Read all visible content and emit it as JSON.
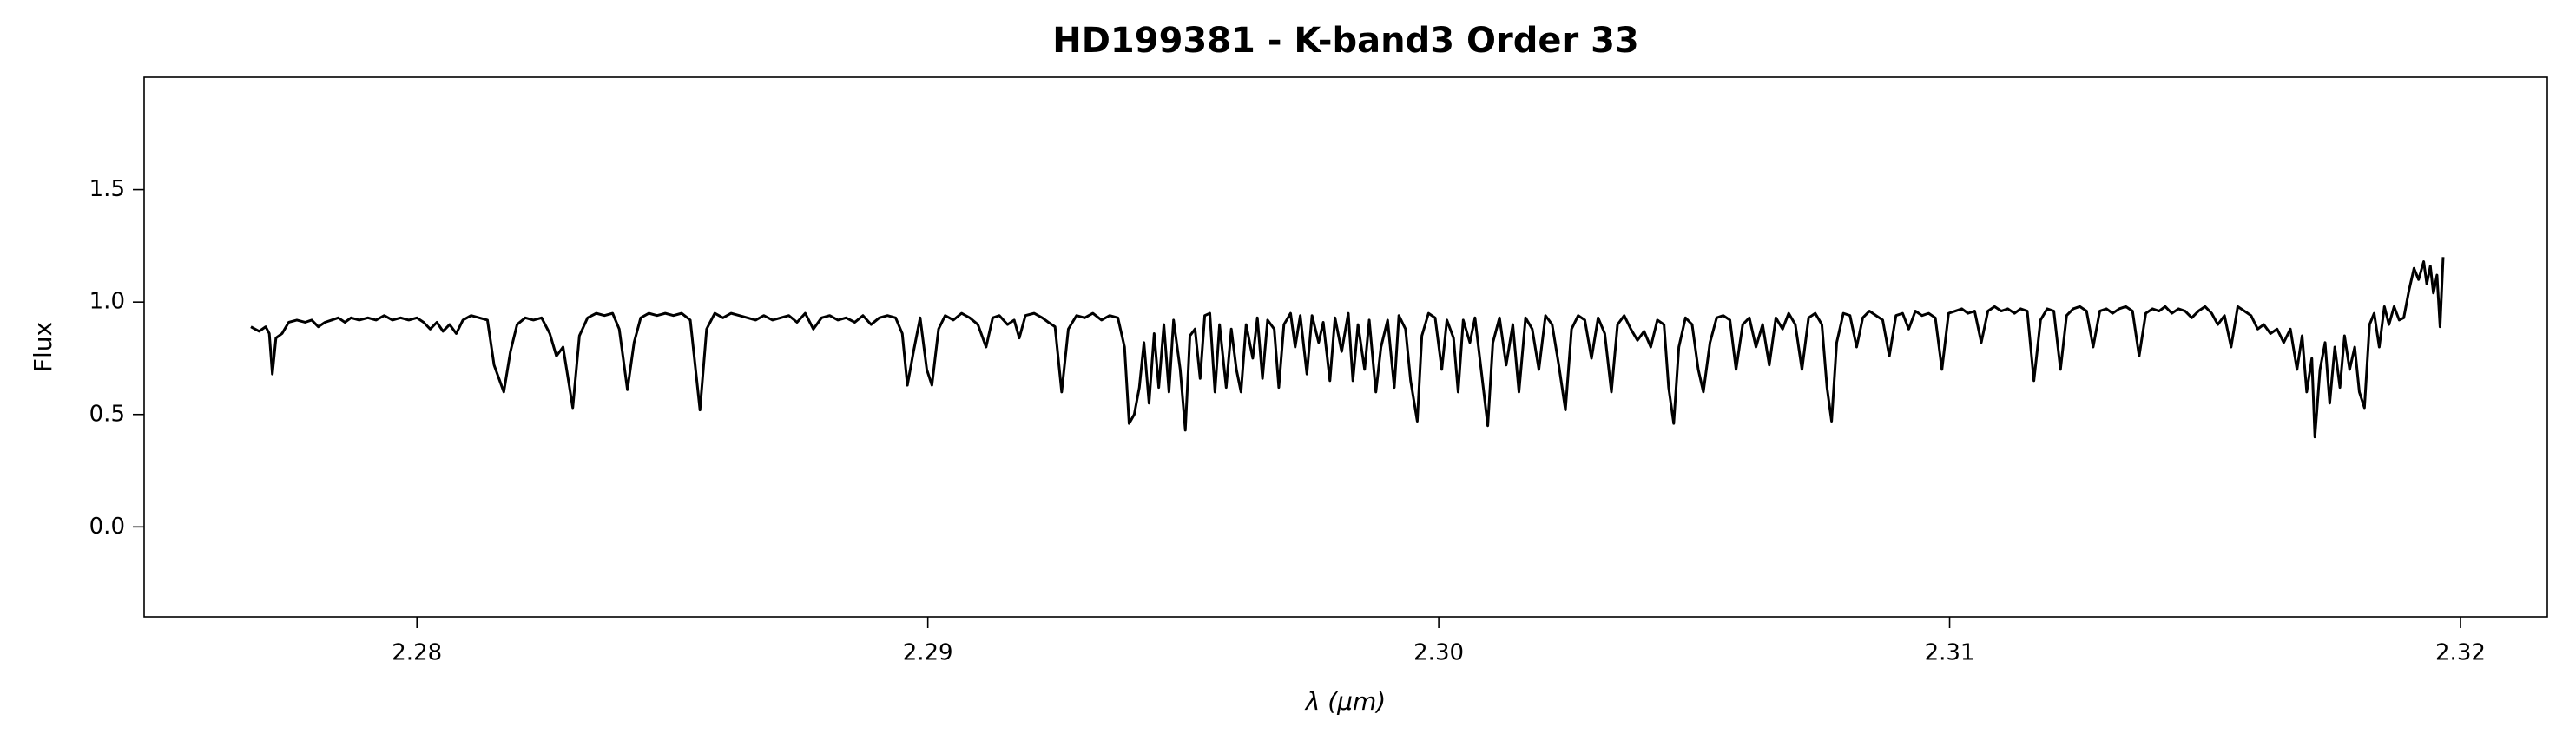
{
  "chart_data": {
    "type": "line",
    "title": "HD199381 - K-band3 Order 33",
    "x_label": "λ (μm)",
    "y_label": "Flux",
    "color": "#000000",
    "grid": false,
    "xlim": [
      2.27466,
      2.3217
    ],
    "ylim": [
      -0.4,
      2.0
    ],
    "xticks": [
      2.28,
      2.29,
      {
        "value": 2.3,
        "label": "2.30"
      },
      2.31,
      2.32
    ],
    "yticks": [
      {
        "value": 0,
        "label": "0.0"
      },
      0.5,
      {
        "value": 1,
        "label": "1.0"
      },
      1.5
    ],
    "x": [
      2.27675,
      2.27691,
      2.27704,
      2.27711,
      2.27717,
      2.27724,
      2.27736,
      2.27749,
      2.27765,
      2.27781,
      2.27794,
      2.27807,
      2.2782,
      2.27833,
      2.27846,
      2.27859,
      2.27871,
      2.27887,
      2.27904,
      2.2792,
      2.27936,
      2.27952,
      2.27968,
      2.27984,
      2.28,
      2.28013,
      2.28026,
      2.28039,
      2.28051,
      2.28064,
      2.28077,
      2.2809,
      2.28106,
      2.28122,
      2.28138,
      2.28151,
      2.2817,
      2.28183,
      2.28196,
      2.28212,
      2.28228,
      2.28244,
      2.2826,
      2.28273,
      2.28286,
      2.28305,
      2.28318,
      2.28334,
      2.28351,
      2.28367,
      2.28383,
      2.28396,
      2.28412,
      2.28425,
      2.28438,
      2.28454,
      2.2847,
      2.28486,
      2.28502,
      2.28518,
      2.28535,
      2.28554,
      2.28567,
      2.28583,
      2.28599,
      2.28615,
      2.28631,
      2.28647,
      2.28663,
      2.28679,
      2.28696,
      2.28712,
      2.28728,
      2.28744,
      2.2876,
      2.28776,
      2.28792,
      2.28808,
      2.28824,
      2.2884,
      2.28857,
      2.28873,
      2.28889,
      2.28905,
      2.28921,
      2.28937,
      2.2895,
      2.2896,
      2.28972,
      2.28985,
      2.28998,
      2.29008,
      2.29021,
      2.29034,
      2.2905,
      2.29066,
      2.29082,
      2.29098,
      2.29114,
      2.29127,
      2.2914,
      2.29156,
      2.29169,
      2.29179,
      2.29191,
      2.29208,
      2.29224,
      2.29236,
      2.29249,
      2.29262,
      2.29275,
      2.29291,
      2.29307,
      2.29323,
      2.2934,
      2.29356,
      2.29372,
      2.29385,
      2.29394,
      2.29404,
      2.29414,
      2.29423,
      2.29433,
      2.29443,
      2.29452,
      2.29462,
      2.29472,
      2.29481,
      2.29494,
      2.29504,
      2.29513,
      2.29523,
      2.29533,
      2.29542,
      2.29552,
      2.29562,
      2.29571,
      2.29584,
      2.29594,
      2.29604,
      2.29613,
      2.29623,
      2.29636,
      2.29645,
      2.29655,
      2.29665,
      2.29678,
      2.29687,
      2.29697,
      2.2971,
      2.29719,
      2.29729,
      2.29742,
      2.29752,
      2.29765,
      2.29774,
      2.29787,
      2.29797,
      2.2981,
      2.29823,
      2.29832,
      2.29842,
      2.29855,
      2.29864,
      2.29877,
      2.29887,
      2.299,
      2.29913,
      2.29922,
      2.29935,
      2.29945,
      2.29958,
      2.29967,
      2.2998,
      2.29993,
      2.30006,
      2.30016,
      2.30029,
      2.30038,
      2.30048,
      2.30061,
      2.30071,
      2.30083,
      2.30096,
      2.30106,
      2.30119,
      2.30132,
      2.30145,
      2.30157,
      2.3017,
      2.30183,
      2.30196,
      2.30209,
      2.30222,
      2.30235,
      2.30248,
      2.3026,
      2.30273,
      2.30286,
      2.30299,
      2.30312,
      2.30325,
      2.30338,
      2.3035,
      2.30363,
      2.30376,
      2.30389,
      2.30402,
      2.30415,
      2.30428,
      2.30441,
      2.3045,
      2.3046,
      2.3047,
      2.30483,
      2.30496,
      2.30508,
      2.30518,
      2.30531,
      2.30544,
      2.30557,
      2.3057,
      2.30582,
      2.30595,
      2.30608,
      2.30621,
      2.30634,
      2.30647,
      2.3066,
      2.30673,
      2.30685,
      2.30698,
      2.30711,
      2.30724,
      2.30737,
      2.3075,
      2.3076,
      2.30769,
      2.30779,
      2.30792,
      2.30805,
      2.30818,
      2.3083,
      2.30843,
      2.30856,
      2.30869,
      2.30882,
      2.30895,
      2.30908,
      2.3092,
      2.30933,
      2.30946,
      2.30959,
      2.30972,
      2.30985,
      2.30998,
      2.31011,
      2.31024,
      2.31036,
      2.31049,
      2.31062,
      2.31075,
      2.31088,
      2.31101,
      2.31114,
      2.31127,
      2.31139,
      2.31152,
      2.31165,
      2.31178,
      2.31191,
      2.31204,
      2.31217,
      2.31229,
      2.31242,
      2.31255,
      2.31268,
      2.31281,
      2.31294,
      2.31307,
      2.31319,
      2.31332,
      2.31345,
      2.31358,
      2.31371,
      2.31384,
      2.31397,
      2.3141,
      2.31422,
      2.31435,
      2.31448,
      2.31461,
      2.31474,
      2.31487,
      2.315,
      2.31513,
      2.31525,
      2.31538,
      2.31551,
      2.31564,
      2.31577,
      2.3159,
      2.31603,
      2.31615,
      2.31628,
      2.31641,
      2.31654,
      2.31667,
      2.3168,
      2.3169,
      2.31699,
      2.31709,
      2.31715,
      2.31725,
      2.31735,
      2.31744,
      2.31754,
      2.31764,
      2.31773,
      2.31783,
      2.31793,
      2.31802,
      2.31812,
      2.31822,
      2.31831,
      2.31841,
      2.31851,
      2.3186,
      2.3187,
      2.3188,
      2.31889,
      2.31899,
      2.31909,
      2.31918,
      2.31928,
      2.31934,
      2.31941,
      2.31947,
      2.31954,
      2.3196,
      2.31966
    ],
    "values": [
      0.89,
      0.87,
      0.89,
      0.86,
      0.68,
      0.84,
      0.86,
      0.91,
      0.92,
      0.91,
      0.92,
      0.89,
      0.91,
      0.92,
      0.93,
      0.91,
      0.93,
      0.92,
      0.93,
      0.92,
      0.94,
      0.92,
      0.93,
      0.92,
      0.93,
      0.91,
      0.88,
      0.91,
      0.87,
      0.9,
      0.86,
      0.92,
      0.94,
      0.93,
      0.92,
      0.72,
      0.6,
      0.78,
      0.9,
      0.93,
      0.92,
      0.93,
      0.86,
      0.76,
      0.8,
      0.53,
      0.85,
      0.93,
      0.95,
      0.94,
      0.95,
      0.88,
      0.61,
      0.82,
      0.93,
      0.95,
      0.94,
      0.95,
      0.94,
      0.95,
      0.92,
      0.52,
      0.88,
      0.95,
      0.93,
      0.95,
      0.94,
      0.93,
      0.92,
      0.94,
      0.92,
      0.93,
      0.94,
      0.91,
      0.95,
      0.88,
      0.93,
      0.94,
      0.92,
      0.93,
      0.91,
      0.94,
      0.9,
      0.93,
      0.94,
      0.93,
      0.86,
      0.63,
      0.78,
      0.93,
      0.7,
      0.63,
      0.88,
      0.94,
      0.92,
      0.95,
      0.93,
      0.9,
      0.8,
      0.93,
      0.94,
      0.9,
      0.92,
      0.84,
      0.94,
      0.95,
      0.93,
      0.91,
      0.89,
      0.6,
      0.88,
      0.94,
      0.93,
      0.95,
      0.92,
      0.94,
      0.93,
      0.8,
      0.46,
      0.5,
      0.62,
      0.82,
      0.55,
      0.86,
      0.62,
      0.9,
      0.6,
      0.92,
      0.7,
      0.43,
      0.85,
      0.88,
      0.66,
      0.94,
      0.95,
      0.6,
      0.9,
      0.62,
      0.88,
      0.7,
      0.6,
      0.9,
      0.75,
      0.93,
      0.66,
      0.92,
      0.88,
      0.62,
      0.9,
      0.95,
      0.8,
      0.94,
      0.68,
      0.94,
      0.82,
      0.91,
      0.65,
      0.93,
      0.78,
      0.95,
      0.65,
      0.9,
      0.7,
      0.92,
      0.6,
      0.8,
      0.92,
      0.62,
      0.94,
      0.88,
      0.65,
      0.47,
      0.85,
      0.95,
      0.93,
      0.7,
      0.92,
      0.84,
      0.6,
      0.92,
      0.82,
      0.93,
      0.7,
      0.45,
      0.82,
      0.93,
      0.72,
      0.9,
      0.6,
      0.93,
      0.88,
      0.7,
      0.94,
      0.9,
      0.72,
      0.52,
      0.88,
      0.94,
      0.92,
      0.75,
      0.93,
      0.86,
      0.6,
      0.9,
      0.94,
      0.88,
      0.83,
      0.87,
      0.8,
      0.92,
      0.9,
      0.62,
      0.46,
      0.8,
      0.93,
      0.9,
      0.7,
      0.6,
      0.82,
      0.93,
      0.94,
      0.92,
      0.7,
      0.9,
      0.93,
      0.8,
      0.9,
      0.72,
      0.93,
      0.88,
      0.95,
      0.9,
      0.7,
      0.93,
      0.95,
      0.9,
      0.62,
      0.47,
      0.82,
      0.95,
      0.94,
      0.8,
      0.93,
      0.96,
      0.94,
      0.92,
      0.76,
      0.94,
      0.95,
      0.88,
      0.96,
      0.94,
      0.95,
      0.93,
      0.7,
      0.95,
      0.96,
      0.97,
      0.95,
      0.96,
      0.82,
      0.96,
      0.98,
      0.96,
      0.97,
      0.95,
      0.97,
      0.96,
      0.65,
      0.92,
      0.97,
      0.96,
      0.7,
      0.94,
      0.97,
      0.98,
      0.96,
      0.8,
      0.96,
      0.97,
      0.95,
      0.97,
      0.98,
      0.96,
      0.76,
      0.95,
      0.97,
      0.96,
      0.98,
      0.95,
      0.97,
      0.96,
      0.93,
      0.96,
      0.98,
      0.95,
      0.9,
      0.94,
      0.8,
      0.98,
      0.96,
      0.94,
      0.88,
      0.9,
      0.86,
      0.88,
      0.82,
      0.88,
      0.7,
      0.85,
      0.6,
      0.75,
      0.4,
      0.7,
      0.82,
      0.55,
      0.8,
      0.62,
      0.85,
      0.7,
      0.8,
      0.6,
      0.53,
      0.9,
      0.95,
      0.8,
      0.98,
      0.9,
      0.98,
      0.92,
      0.93,
      1.05,
      1.15,
      1.1,
      1.18,
      1.08,
      1.16,
      1.04,
      1.12,
      0.89,
      1.2
    ]
  }
}
